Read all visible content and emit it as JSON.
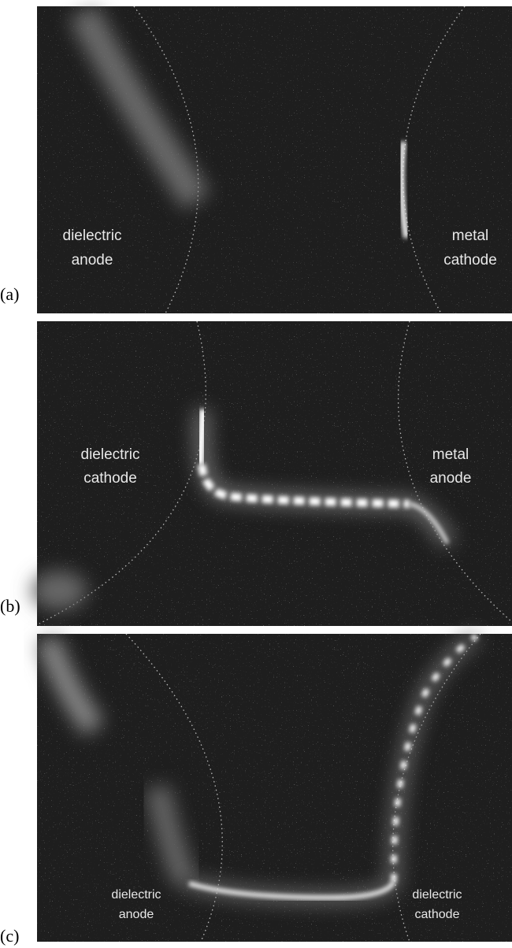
{
  "panels": [
    {
      "label": "(a)",
      "left_electrode": [
        "dielectric",
        "anode"
      ],
      "right_electrode": [
        "metal",
        "cathode"
      ]
    },
    {
      "label": "(b)",
      "left_electrode": [
        "dielectric",
        "cathode"
      ],
      "right_electrode": [
        "metal",
        "anode"
      ]
    },
    {
      "label": "(c)",
      "left_electrode": [
        "dielectric",
        "anode"
      ],
      "right_electrode": [
        "dielectric",
        "cathode"
      ]
    }
  ]
}
